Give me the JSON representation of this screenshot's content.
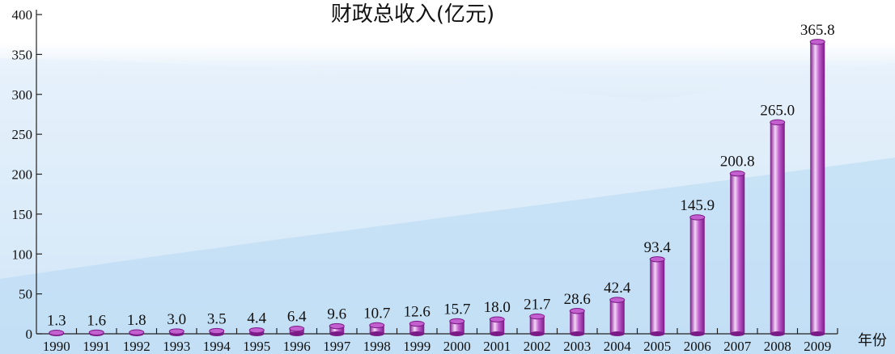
{
  "chart_data": {
    "type": "bar",
    "title": "财政总收入(亿元)",
    "xlabel": "年份",
    "ylabel": "",
    "ylim": [
      0,
      400
    ],
    "yticks": [
      0,
      50,
      100,
      150,
      200,
      250,
      300,
      350,
      400
    ],
    "grid": false,
    "categories": [
      "1990",
      "1991",
      "1992",
      "1993",
      "1994",
      "1995",
      "1996",
      "1997",
      "1998",
      "1999",
      "2000",
      "2001",
      "2002",
      "2003",
      "2004",
      "2005",
      "2006",
      "2007",
      "2008",
      "2009"
    ],
    "values": [
      1.3,
      1.6,
      1.8,
      3.0,
      3.5,
      4.4,
      6.4,
      9.6,
      10.7,
      12.6,
      15.7,
      18.0,
      21.7,
      28.6,
      42.4,
      93.4,
      145.9,
      200.8,
      265.0,
      365.8
    ],
    "value_labels": [
      "1.3",
      "1.6",
      "1.8",
      "3.0",
      "3.5",
      "4.4",
      "6.4",
      "9.6",
      "10.7",
      "12.6",
      "15.7",
      "18.0",
      "21.7",
      "28.6",
      "42.4",
      "93.4",
      "145.9",
      "200.8",
      "265.0",
      "365.8"
    ],
    "colors": {
      "bar_dark": "#7a1a86",
      "bar_light": "#f4d6f8",
      "bar_mid": "#c35fcf",
      "band_light": "#e6f1fb",
      "band_dark": "#b9daf3"
    }
  }
}
